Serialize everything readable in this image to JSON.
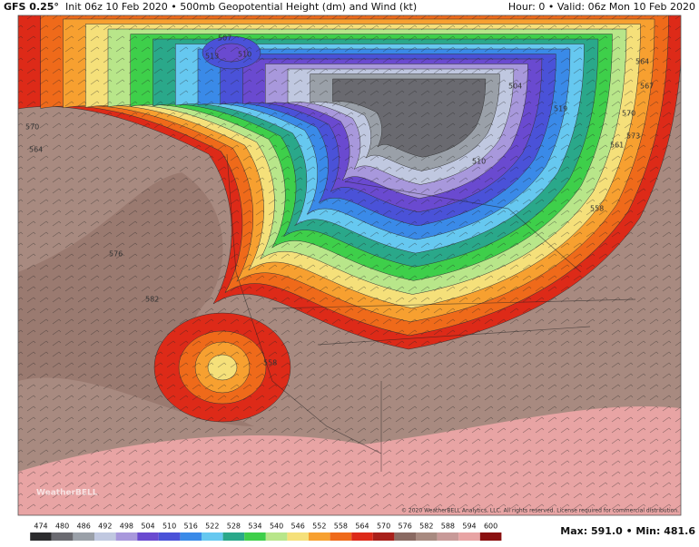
{
  "header": {
    "model": "GFS 0.25°",
    "title": "Init 06z 10 Feb 2020 • 500mb Geopotential Height (dm) and Wind (kt)",
    "valid": "Hour: 0 • Valid: 06z Mon 10 Feb 2020"
  },
  "map": {
    "contour_labels": [
      "507",
      "510",
      "513",
      "504",
      "519",
      "564",
      "567",
      "570",
      "573",
      "561",
      "564",
      "570",
      "576",
      "582",
      "558",
      "510",
      "558"
    ],
    "watermark": "WeatherBELL",
    "copyright": "© 2020 WeatherBELL Analytics, LLC. All rights reserved. License required for commercial distribution."
  },
  "colorbar": {
    "labels": [
      "474",
      "480",
      "486",
      "492",
      "498",
      "504",
      "510",
      "516",
      "522",
      "528",
      "534",
      "540",
      "546",
      "552",
      "558",
      "564",
      "570",
      "576",
      "582",
      "588",
      "594",
      "600"
    ],
    "colors": [
      "#2c2c2e",
      "#6a6a70",
      "#9aa0a8",
      "#c0c8e0",
      "#a898dc",
      "#6a4ad0",
      "#4a52d8",
      "#3a8ae8",
      "#66c8f0",
      "#2aa88a",
      "#3ecf4a",
      "#b8e68a",
      "#f5e07a",
      "#f7a030",
      "#ef6a1a",
      "#dd2a18",
      "#a8201a",
      "#8a6a62",
      "#a88a80",
      "#c89a98",
      "#e8a4a4",
      "#8a1010"
    ]
  },
  "footer": {
    "extremes": "Max: 591.0 • Min: 481.6"
  }
}
